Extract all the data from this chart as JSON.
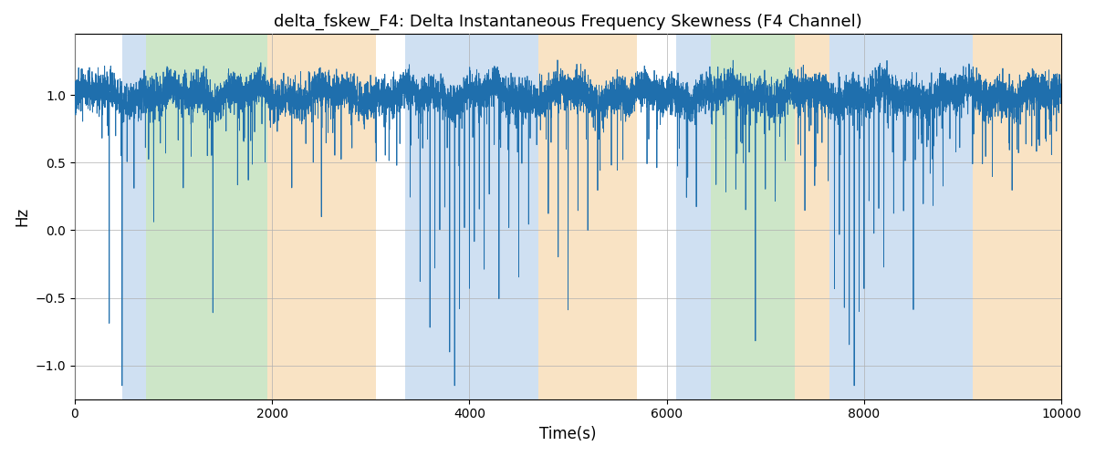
{
  "title": "delta_fskew_F4: Delta Instantaneous Frequency Skewness (F4 Channel)",
  "xlabel": "Time(s)",
  "ylabel": "Hz",
  "xlim": [
    0,
    10000
  ],
  "ylim": [
    -1.25,
    1.45
  ],
  "line_color": "#1f6fad",
  "line_width": 0.6,
  "background_color": "#ffffff",
  "grid_color": "#b0b0b0",
  "bands": [
    {
      "xmin": 480,
      "xmax": 720,
      "color": "#a8c8e8",
      "alpha": 0.55
    },
    {
      "xmin": 720,
      "xmax": 1950,
      "color": "#90c885",
      "alpha": 0.45
    },
    {
      "xmin": 1950,
      "xmax": 3050,
      "color": "#f5c88a",
      "alpha": 0.5
    },
    {
      "xmin": 3350,
      "xmax": 4700,
      "color": "#a8c8e8",
      "alpha": 0.55
    },
    {
      "xmin": 4700,
      "xmax": 5700,
      "color": "#f5c88a",
      "alpha": 0.5
    },
    {
      "xmin": 6100,
      "xmax": 6450,
      "color": "#a8c8e8",
      "alpha": 0.55
    },
    {
      "xmin": 6450,
      "xmax": 7300,
      "color": "#90c885",
      "alpha": 0.45
    },
    {
      "xmin": 7300,
      "xmax": 7650,
      "color": "#f5c88a",
      "alpha": 0.5
    },
    {
      "xmin": 7650,
      "xmax": 9100,
      "color": "#a8c8e8",
      "alpha": 0.55
    },
    {
      "xmin": 9100,
      "xmax": 10200,
      "color": "#f5c88a",
      "alpha": 0.5
    }
  ],
  "yticks": [
    -1.0,
    -0.5,
    0.0,
    0.5,
    1.0
  ],
  "xticks": [
    0,
    2000,
    4000,
    6000,
    8000,
    10000
  ],
  "n_points": 10000,
  "base_mean": 1.0,
  "base_noise_std": 0.07,
  "spike_noise_std": 0.03
}
